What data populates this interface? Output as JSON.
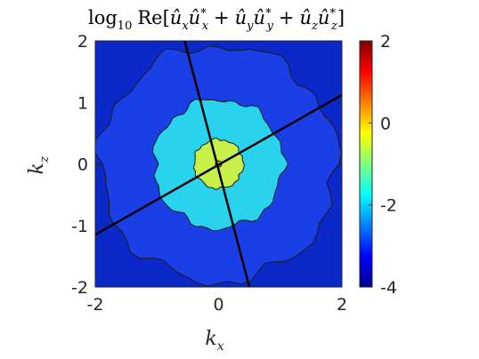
{
  "chart_data": {
    "type": "heatmap",
    "title": "log10 Re[ûxûx* + ûyûy* + ûzûz*]",
    "title_parts": {
      "log": "log",
      "log_sub": "10",
      "re": "Re[",
      "u": "û",
      "sub_x": "x",
      "sub_y": "y",
      "sub_z": "z",
      "star": "*",
      "plus": "+",
      "close": "]"
    },
    "xlabel": "k",
    "xlabel_sub": "x",
    "ylabel": "k",
    "ylabel_sub": "z",
    "xlim": [
      -2,
      2
    ],
    "ylim": [
      -2,
      2
    ],
    "xticks": [
      -2,
      0,
      2
    ],
    "yticks": [
      2,
      1,
      0,
      -1,
      -2
    ],
    "xtick_labels": [
      "-2",
      "0",
      "2"
    ],
    "ytick_labels": [
      "2",
      "1",
      "0",
      "-1",
      "-2"
    ],
    "colorbar": {
      "range": [
        -4,
        2
      ],
      "ticks": [
        2,
        0,
        -2,
        -4
      ],
      "tick_labels": [
        "2",
        "0",
        "-2",
        "-4"
      ],
      "colormap": "jet"
    },
    "contour_levels": [
      {
        "level": -3,
        "radius": 1.92,
        "color": "#1a3fe6"
      },
      {
        "level": -2,
        "radius": 1.05,
        "color": "#29d3ee"
      },
      {
        "level": -1,
        "radius": 0.4,
        "color": "#c7f048"
      },
      {
        "level": 0,
        "radius": 0.05,
        "color": "#f0a92a"
      }
    ],
    "background_color": "#0b28c8",
    "lines": [
      {
        "name": "",
        "x": [
          -0.55,
          0.5
        ],
        "y": [
          2.0,
          -2.0
        ]
      },
      {
        "name": "",
        "x": [
          -2.0,
          2.0
        ],
        "y": [
          -1.15,
          1.12
        ]
      }
    ]
  }
}
